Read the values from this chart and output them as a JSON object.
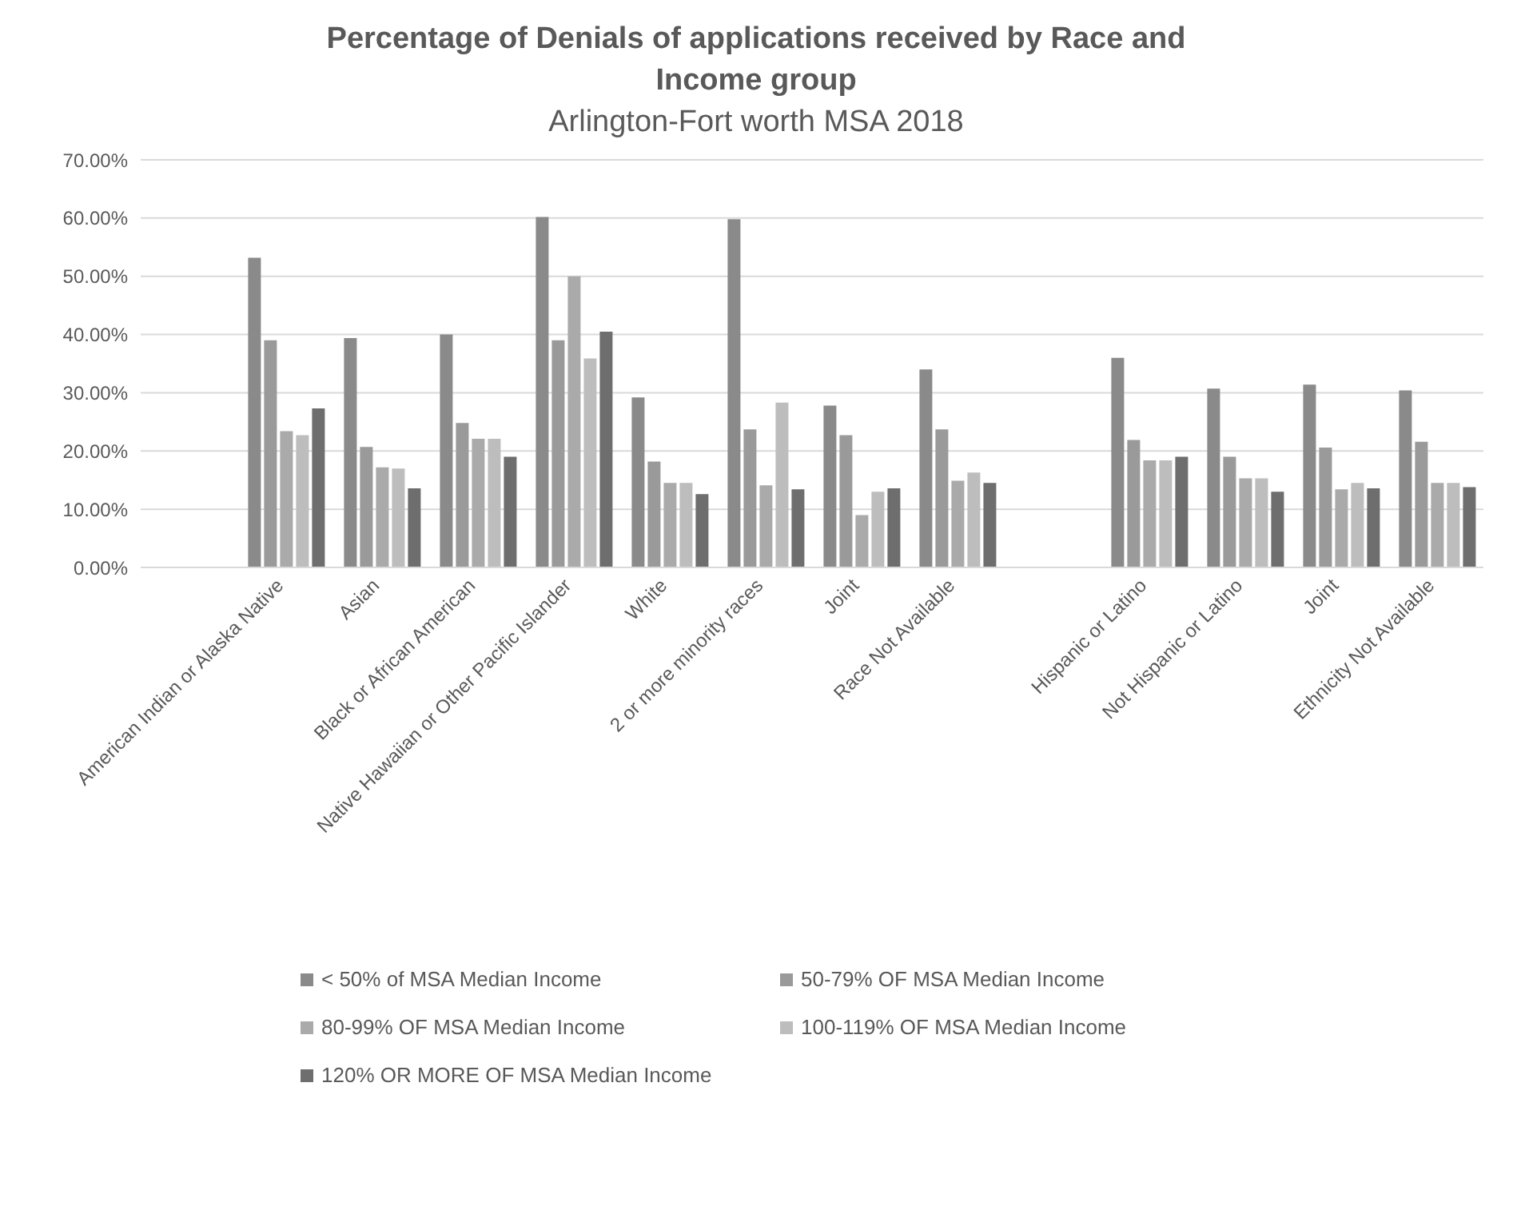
{
  "chart_data": {
    "type": "bar",
    "title": "Percentage of Denials of applications received by Race and Income group",
    "subtitle": "Arlington-Fort worth MSA 2018",
    "categories": [
      null,
      "American Indian or Alaska Native",
      "Asian",
      "Black or African American",
      "Native Hawaiian or Other Pacific Islander",
      "White",
      "2 or more minority races",
      "Joint",
      "Race Not Available",
      null,
      "Hispanic or Latino",
      "Not Hispanic or Latino",
      "Joint",
      "Ethnicity Not Available"
    ],
    "series": [
      {
        "name": "< 50% of MSA Median Income",
        "color": "#8a8a8a",
        "values": [
          null,
          53.2,
          39.4,
          40.0,
          60.2,
          29.2,
          59.8,
          27.8,
          34.0,
          null,
          36.0,
          30.7,
          31.4,
          30.4
        ]
      },
      {
        "name": "50-79% OF MSA Median Income",
        "color": "#9a9a9a",
        "values": [
          null,
          39.0,
          20.7,
          24.8,
          39.0,
          18.2,
          23.7,
          22.7,
          23.7,
          null,
          21.9,
          19.0,
          20.6,
          21.6
        ]
      },
      {
        "name": "80-99% OF MSA Median Income",
        "color": "#aaaaaa",
        "values": [
          null,
          23.4,
          17.2,
          22.1,
          50.0,
          14.5,
          14.1,
          9.0,
          14.9,
          null,
          18.4,
          15.3,
          13.4,
          14.5
        ]
      },
      {
        "name": "100-119% OF MSA Median Income",
        "color": "#bdbdbd",
        "values": [
          null,
          22.7,
          17.0,
          22.1,
          35.9,
          14.5,
          28.3,
          13.0,
          16.3,
          null,
          18.4,
          15.3,
          14.5,
          14.5
        ]
      },
      {
        "name": "120% OR MORE OF MSA Median Income",
        "color": "#6e6e6e",
        "values": [
          null,
          27.3,
          13.6,
          19.0,
          40.5,
          12.6,
          13.4,
          13.6,
          14.5,
          null,
          19.0,
          13.0,
          13.6,
          13.8
        ]
      }
    ],
    "ylim": [
      0,
      70
    ],
    "yticks": [
      {
        "value": 0,
        "label": "0.00%"
      },
      {
        "value": 10,
        "label": "10.00%"
      },
      {
        "value": 20,
        "label": "20.00%"
      },
      {
        "value": 30,
        "label": "30.00%"
      },
      {
        "value": 40,
        "label": "40.00%"
      },
      {
        "value": 50,
        "label": "50.00%"
      },
      {
        "value": 60,
        "label": "60.00%"
      },
      {
        "value": 70,
        "label": "70.00%"
      }
    ],
    "grid": "y",
    "legend": "bottom"
  }
}
